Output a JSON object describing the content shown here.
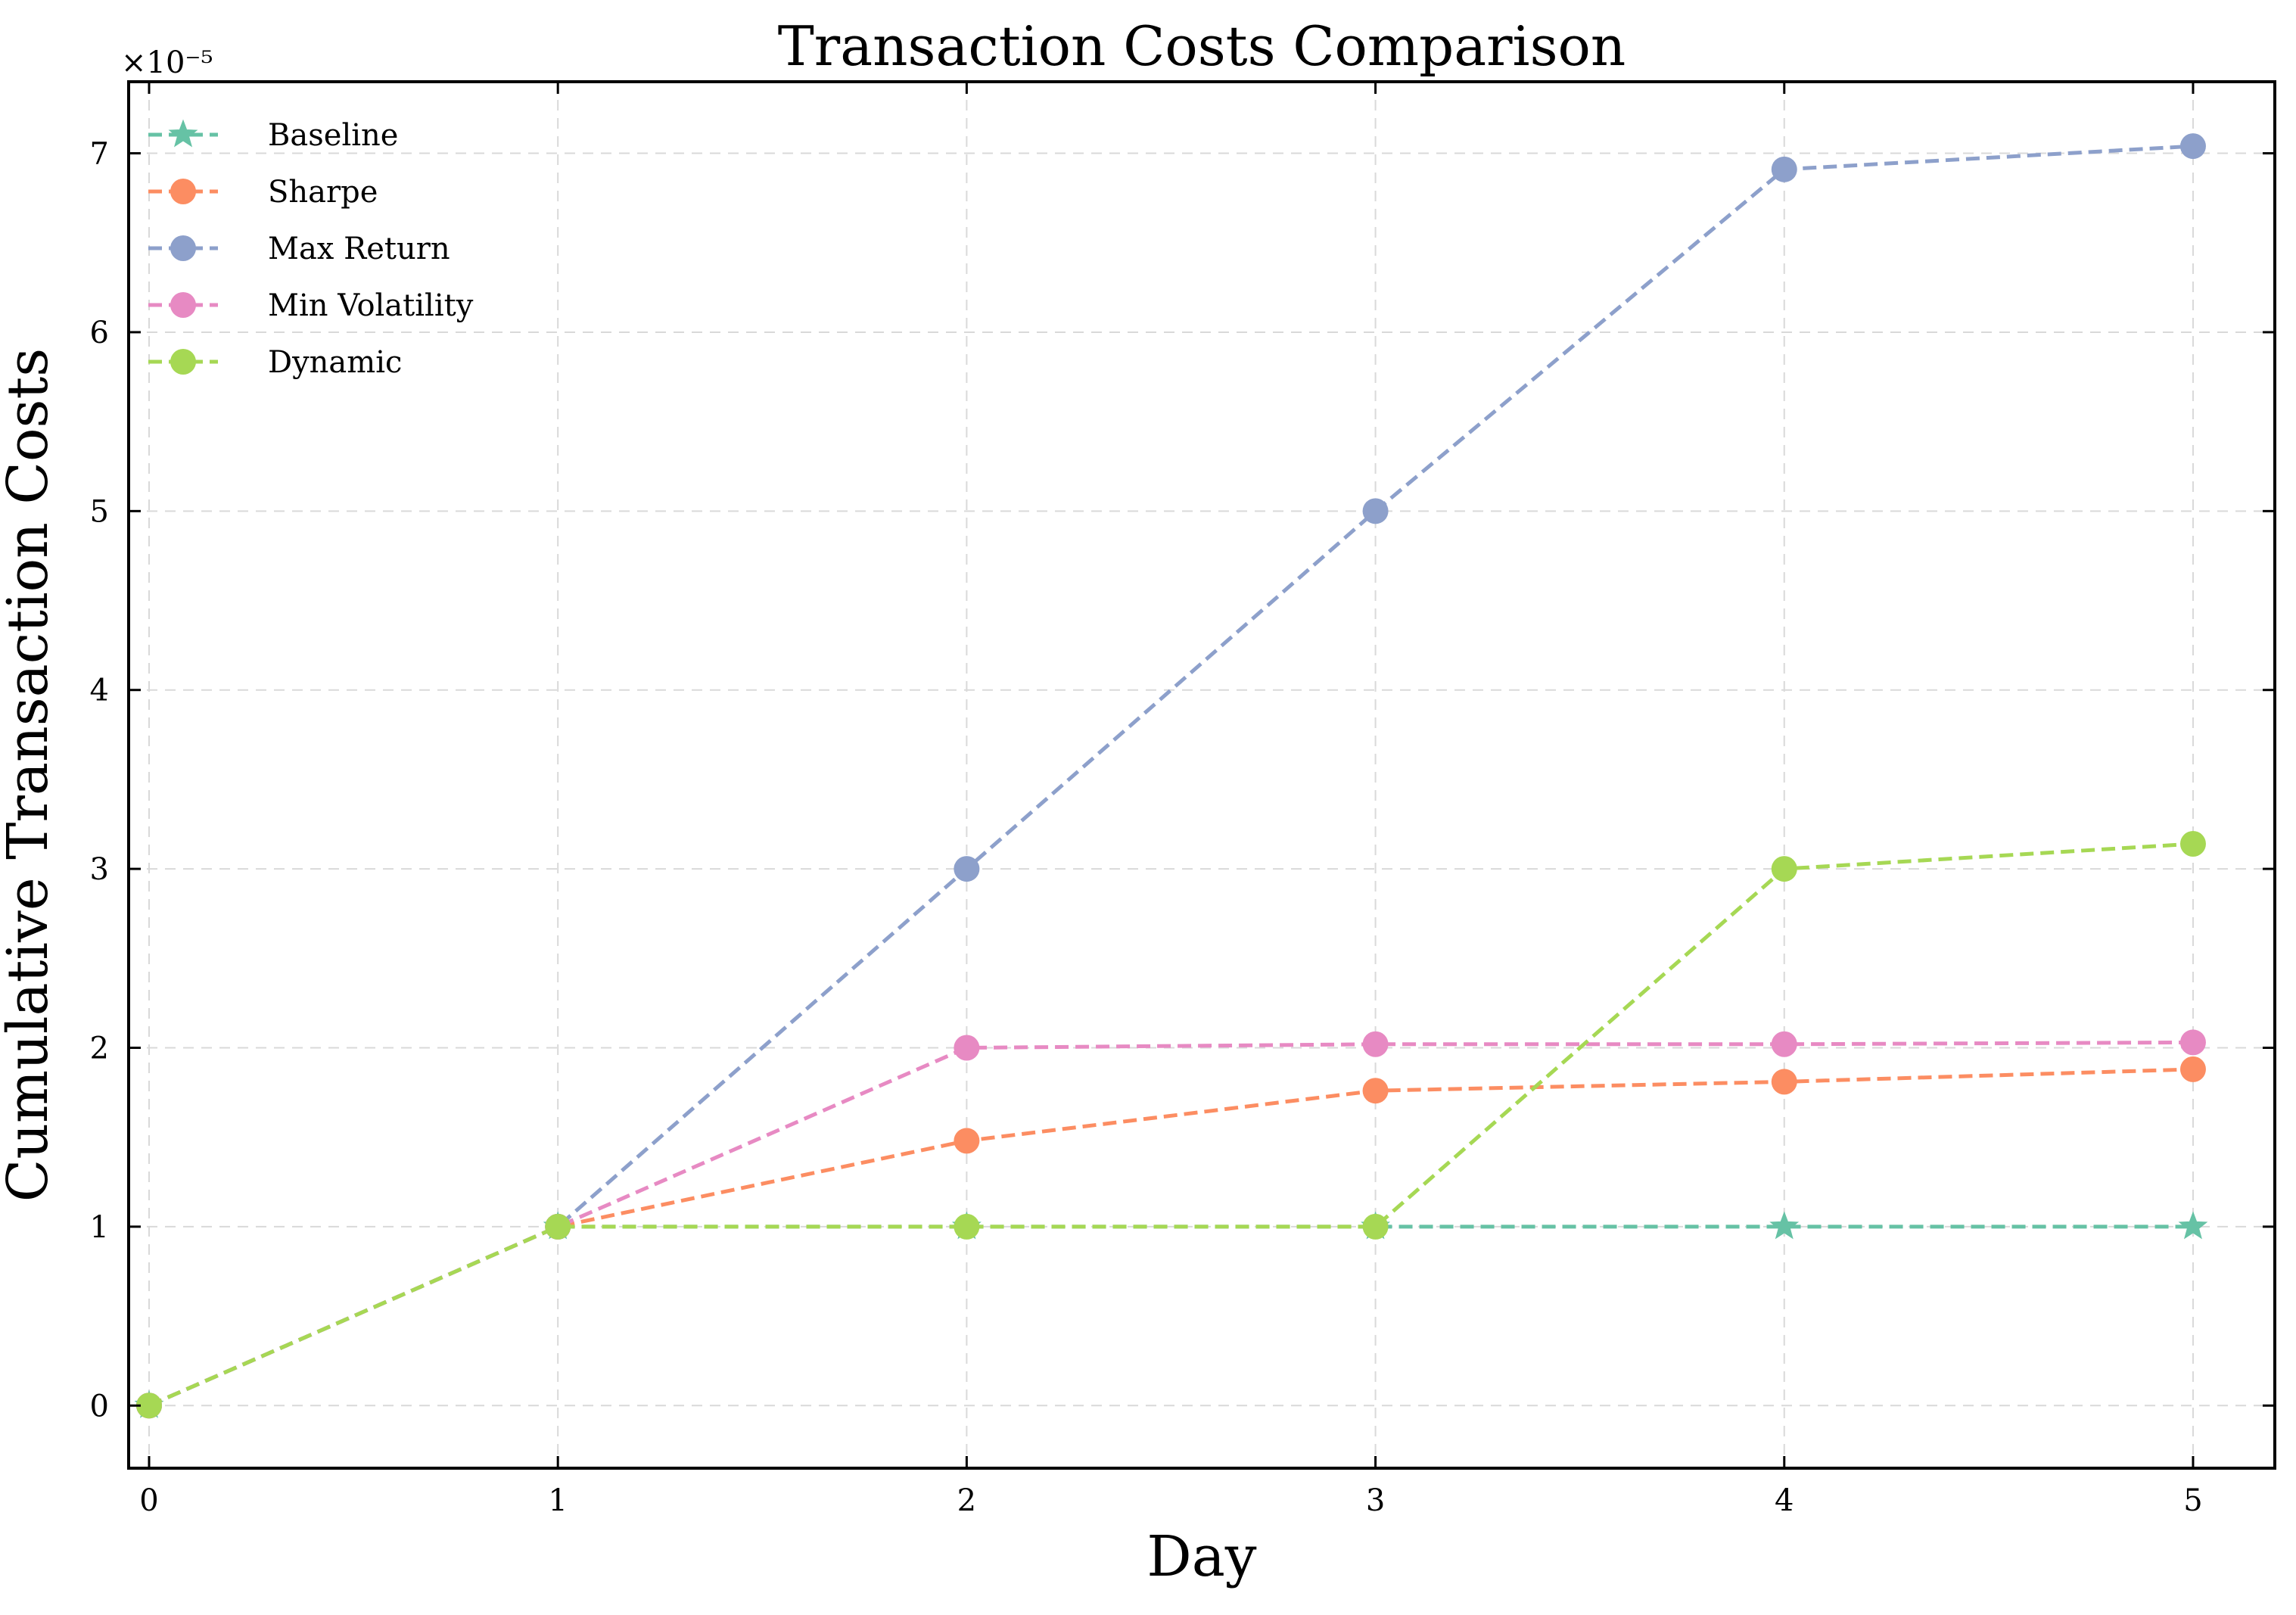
{
  "chart_data": {
    "type": "line",
    "title": "Transaction Costs Comparison",
    "xlabel": "Day",
    "ylabel": "Cumulative Transaction Costs",
    "y_scale_label": "×10⁻⁵",
    "xlim": [
      -0.05,
      5.2
    ],
    "ylim": [
      -0.35,
      7.4
    ],
    "x_ticks": [
      0,
      1,
      2,
      3,
      4,
      5
    ],
    "y_ticks": [
      0,
      1,
      2,
      3,
      4,
      5,
      6,
      7
    ],
    "grid": true,
    "legend_position": "top-left",
    "series": [
      {
        "name": "Baseline",
        "color": "#66c2a5",
        "marker": "star",
        "x": [
          0,
          1,
          2,
          3,
          4,
          5
        ],
        "y": [
          0,
          1,
          1,
          1,
          1,
          1
        ]
      },
      {
        "name": "Sharpe",
        "color": "#fc8d62",
        "marker": "circle",
        "x": [
          0,
          1,
          2,
          3,
          4,
          5
        ],
        "y": [
          0,
          1,
          1.48,
          1.76,
          1.81,
          1.88
        ]
      },
      {
        "name": "Max Return",
        "color": "#8da0cb",
        "marker": "circle",
        "x": [
          0,
          1,
          2,
          3,
          4,
          5
        ],
        "y": [
          0,
          1,
          3.0,
          5.0,
          6.91,
          7.04
        ]
      },
      {
        "name": "Min Volatility",
        "color": "#e78ac3",
        "marker": "circle",
        "x": [
          0,
          1,
          2,
          3,
          4,
          5
        ],
        "y": [
          0,
          1,
          2.0,
          2.02,
          2.02,
          2.03
        ]
      },
      {
        "name": "Dynamic",
        "color": "#a6d854",
        "marker": "circle",
        "x": [
          0,
          1,
          2,
          3,
          4,
          5
        ],
        "y": [
          0,
          1,
          1,
          1,
          3.0,
          3.14
        ]
      }
    ]
  }
}
